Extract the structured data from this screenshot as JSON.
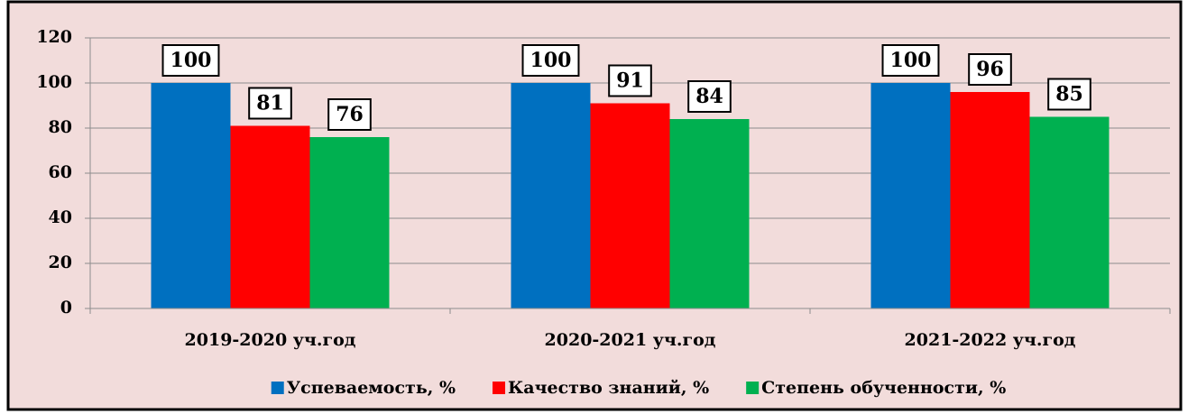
{
  "chart_data": {
    "type": "bar",
    "categories": [
      "2019-2020 уч.год",
      "2020-2021 уч.год",
      "2021-2022 уч.год"
    ],
    "series": [
      {
        "name": "Успеваемость, %",
        "color": "#0070c0",
        "values": [
          100,
          100,
          100
        ]
      },
      {
        "name": "Качество знаний, %",
        "color": "#ff0000",
        "values": [
          81,
          91,
          96
        ]
      },
      {
        "name": "Степень обученности, %",
        "color": "#00b050",
        "values": [
          76,
          84,
          85
        ]
      }
    ],
    "ylim": [
      0,
      120
    ],
    "yticks": [
      0,
      20,
      40,
      60,
      80,
      100,
      120
    ],
    "grid": true,
    "legend": "bottom"
  }
}
